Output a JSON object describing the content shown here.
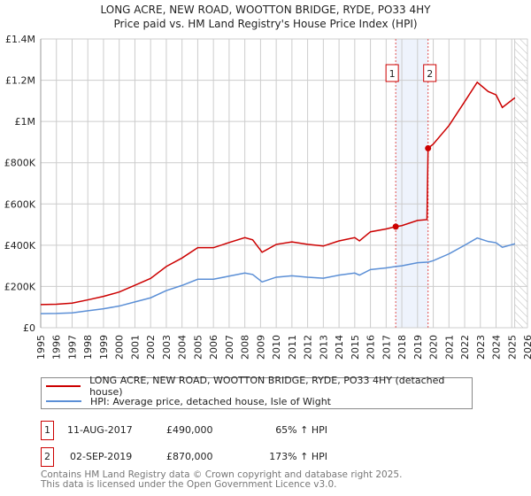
{
  "chart_data": {
    "type": "line",
    "title": "LONG ACRE, NEW ROAD, WOOTTON BRIDGE, RYDE, PO33 4HY",
    "subtitle": "Price paid vs. HM Land Registry's House Price Index (HPI)",
    "xlim": [
      1995,
      2026
    ],
    "ylim": [
      0,
      1400000
    ],
    "yticks": [
      {
        "v": 0,
        "label": "£0"
      },
      {
        "v": 200000,
        "label": "£200K"
      },
      {
        "v": 400000,
        "label": "£400K"
      },
      {
        "v": 600000,
        "label": "£600K"
      },
      {
        "v": 800000,
        "label": "£800K"
      },
      {
        "v": 1000000,
        "label": "£1M"
      },
      {
        "v": 1200000,
        "label": "£1.2M"
      },
      {
        "v": 1400000,
        "label": "£1.4M"
      }
    ],
    "xticks": [
      "1995",
      "1996",
      "1997",
      "1998",
      "1999",
      "2000",
      "2001",
      "2002",
      "2003",
      "2004",
      "2005",
      "2006",
      "2007",
      "2008",
      "2009",
      "2010",
      "2011",
      "2012",
      "2013",
      "2014",
      "2015",
      "2016",
      "2017",
      "2018",
      "2019",
      "2020",
      "2021",
      "2022",
      "2023",
      "2024",
      "2025",
      "2026"
    ],
    "grid": true,
    "shaded_range": [
      2017.61,
      2019.67
    ],
    "hatched_from": 2025.2,
    "series": [
      {
        "name": "LONG ACRE, NEW ROAD, WOOTTON BRIDGE, RYDE, PO33 4HY (detached house)",
        "color": "#cc0000",
        "x": [
          1995,
          1996,
          1997,
          1998,
          1999,
          2000,
          2001,
          2002,
          2003,
          2004,
          2005,
          2006,
          2007,
          2008,
          2008.5,
          2009.1,
          2010,
          2011,
          2012,
          2013,
          2014,
          2015,
          2015.3,
          2016,
          2017,
          2017.61,
          2018,
          2019,
          2019.6,
          2019.67,
          2020,
          2021,
          2022,
          2022.8,
          2023.5,
          2024,
          2024.4,
          2025.2
        ],
        "y": [
          112000,
          114000,
          119000,
          135000,
          152000,
          173000,
          206000,
          239000,
          297000,
          338000,
          388000,
          388000,
          413000,
          437000,
          426000,
          366000,
          404000,
          416000,
          404000,
          396000,
          421000,
          437000,
          421000,
          465000,
          479000,
          490000,
          495000,
          520000,
          524000,
          870000,
          890000,
          980000,
          1096000,
          1190000,
          1145000,
          1129000,
          1068000,
          1115000
        ]
      },
      {
        "name": "HPI: Average price, detached house, Isle of Wight",
        "color": "#5b8fd6",
        "x": [
          1995,
          1996,
          1997,
          1998,
          1999,
          2000,
          2001,
          2002,
          2003,
          2004,
          2005,
          2006,
          2007,
          2008,
          2008.5,
          2009.1,
          2010,
          2011,
          2012,
          2013,
          2014,
          2015,
          2015.3,
          2016,
          2017,
          2017.61,
          2018,
          2019,
          2019.6,
          2019.67,
          2020,
          2021,
          2022,
          2022.8,
          2023.5,
          2024,
          2024.4,
          2025.2
        ],
        "y": [
          68000,
          69000,
          72000,
          82000,
          92000,
          105000,
          125000,
          145000,
          180000,
          205000,
          235000,
          235000,
          250000,
          265000,
          258000,
          222000,
          245000,
          252000,
          245000,
          240000,
          255000,
          265000,
          255000,
          282000,
          290000,
          297000,
          300000,
          315000,
          318000,
          318000,
          325000,
          358000,
          400000,
          435000,
          418000,
          412000,
          390000,
          407000
        ]
      }
    ],
    "sales": [
      {
        "num": "1",
        "x": 2017.61,
        "price": 490000,
        "date": "11-AUG-2017",
        "price_label": "£490,000",
        "hpi": "65% ↑ HPI"
      },
      {
        "num": "2",
        "x": 2019.67,
        "price": 870000,
        "date": "02-SEP-2019",
        "price_label": "£870,000",
        "hpi": "173% ↑ HPI"
      }
    ]
  },
  "footer": {
    "line1": "Contains HM Land Registry data © Crown copyright and database right 2025.",
    "line2": "This data is licensed under the Open Government Licence v3.0."
  }
}
